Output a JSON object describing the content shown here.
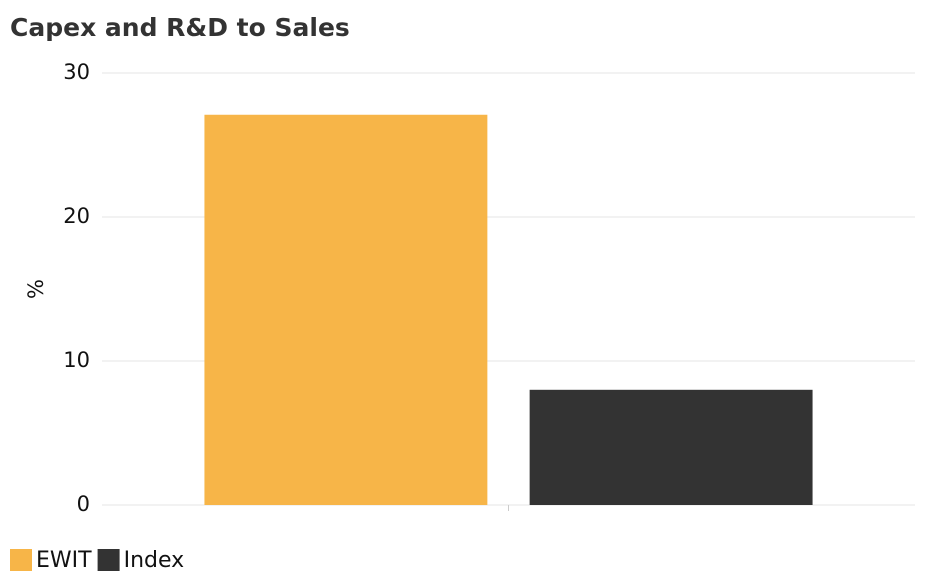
{
  "chart_data": {
    "type": "bar",
    "title": "Capex and R&D to Sales",
    "y_label": "%",
    "categories": [
      null
    ],
    "series": [
      {
        "name": "EWIT",
        "color": "#f7b548",
        "values": [
          27.1
        ]
      },
      {
        "name": "Index",
        "color": "#333333",
        "values": [
          8.0
        ]
      }
    ],
    "ylim": [
      0,
      30
    ],
    "yticks": [
      0,
      10,
      20,
      30
    ],
    "grid": true,
    "legend": "bottom-left"
  }
}
